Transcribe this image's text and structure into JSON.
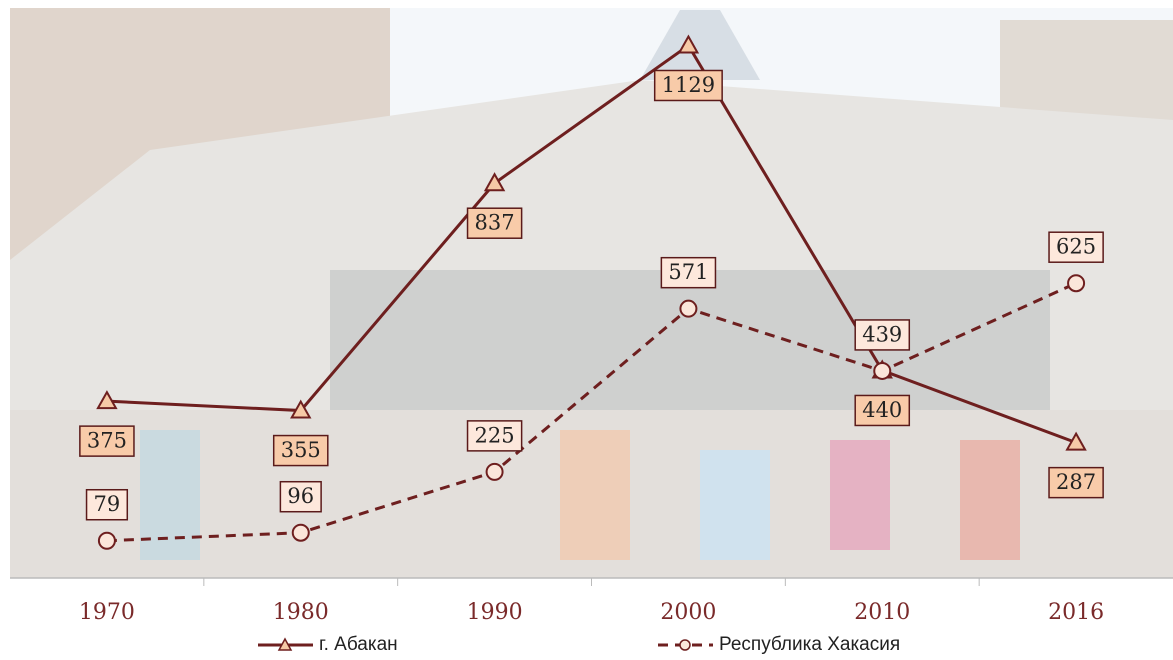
{
  "chart_data": {
    "type": "line",
    "categories": [
      "1970",
      "1980",
      "1990",
      "2000",
      "2010",
      "2016"
    ],
    "series": [
      {
        "name": "г. Абакан",
        "color": "#6e1f1f",
        "marker": "triangle",
        "dash": false,
        "values": [
          375,
          355,
          837,
          1129,
          440,
          287
        ]
      },
      {
        "name": "Республика Хакасия",
        "color": "#6e1f1f",
        "marker": "circle",
        "dash": true,
        "values": [
          79,
          96,
          225,
          571,
          439,
          625
        ]
      }
    ],
    "ylim": [
      0,
      1200
    ],
    "grid": false,
    "legend": "bottom"
  }
}
